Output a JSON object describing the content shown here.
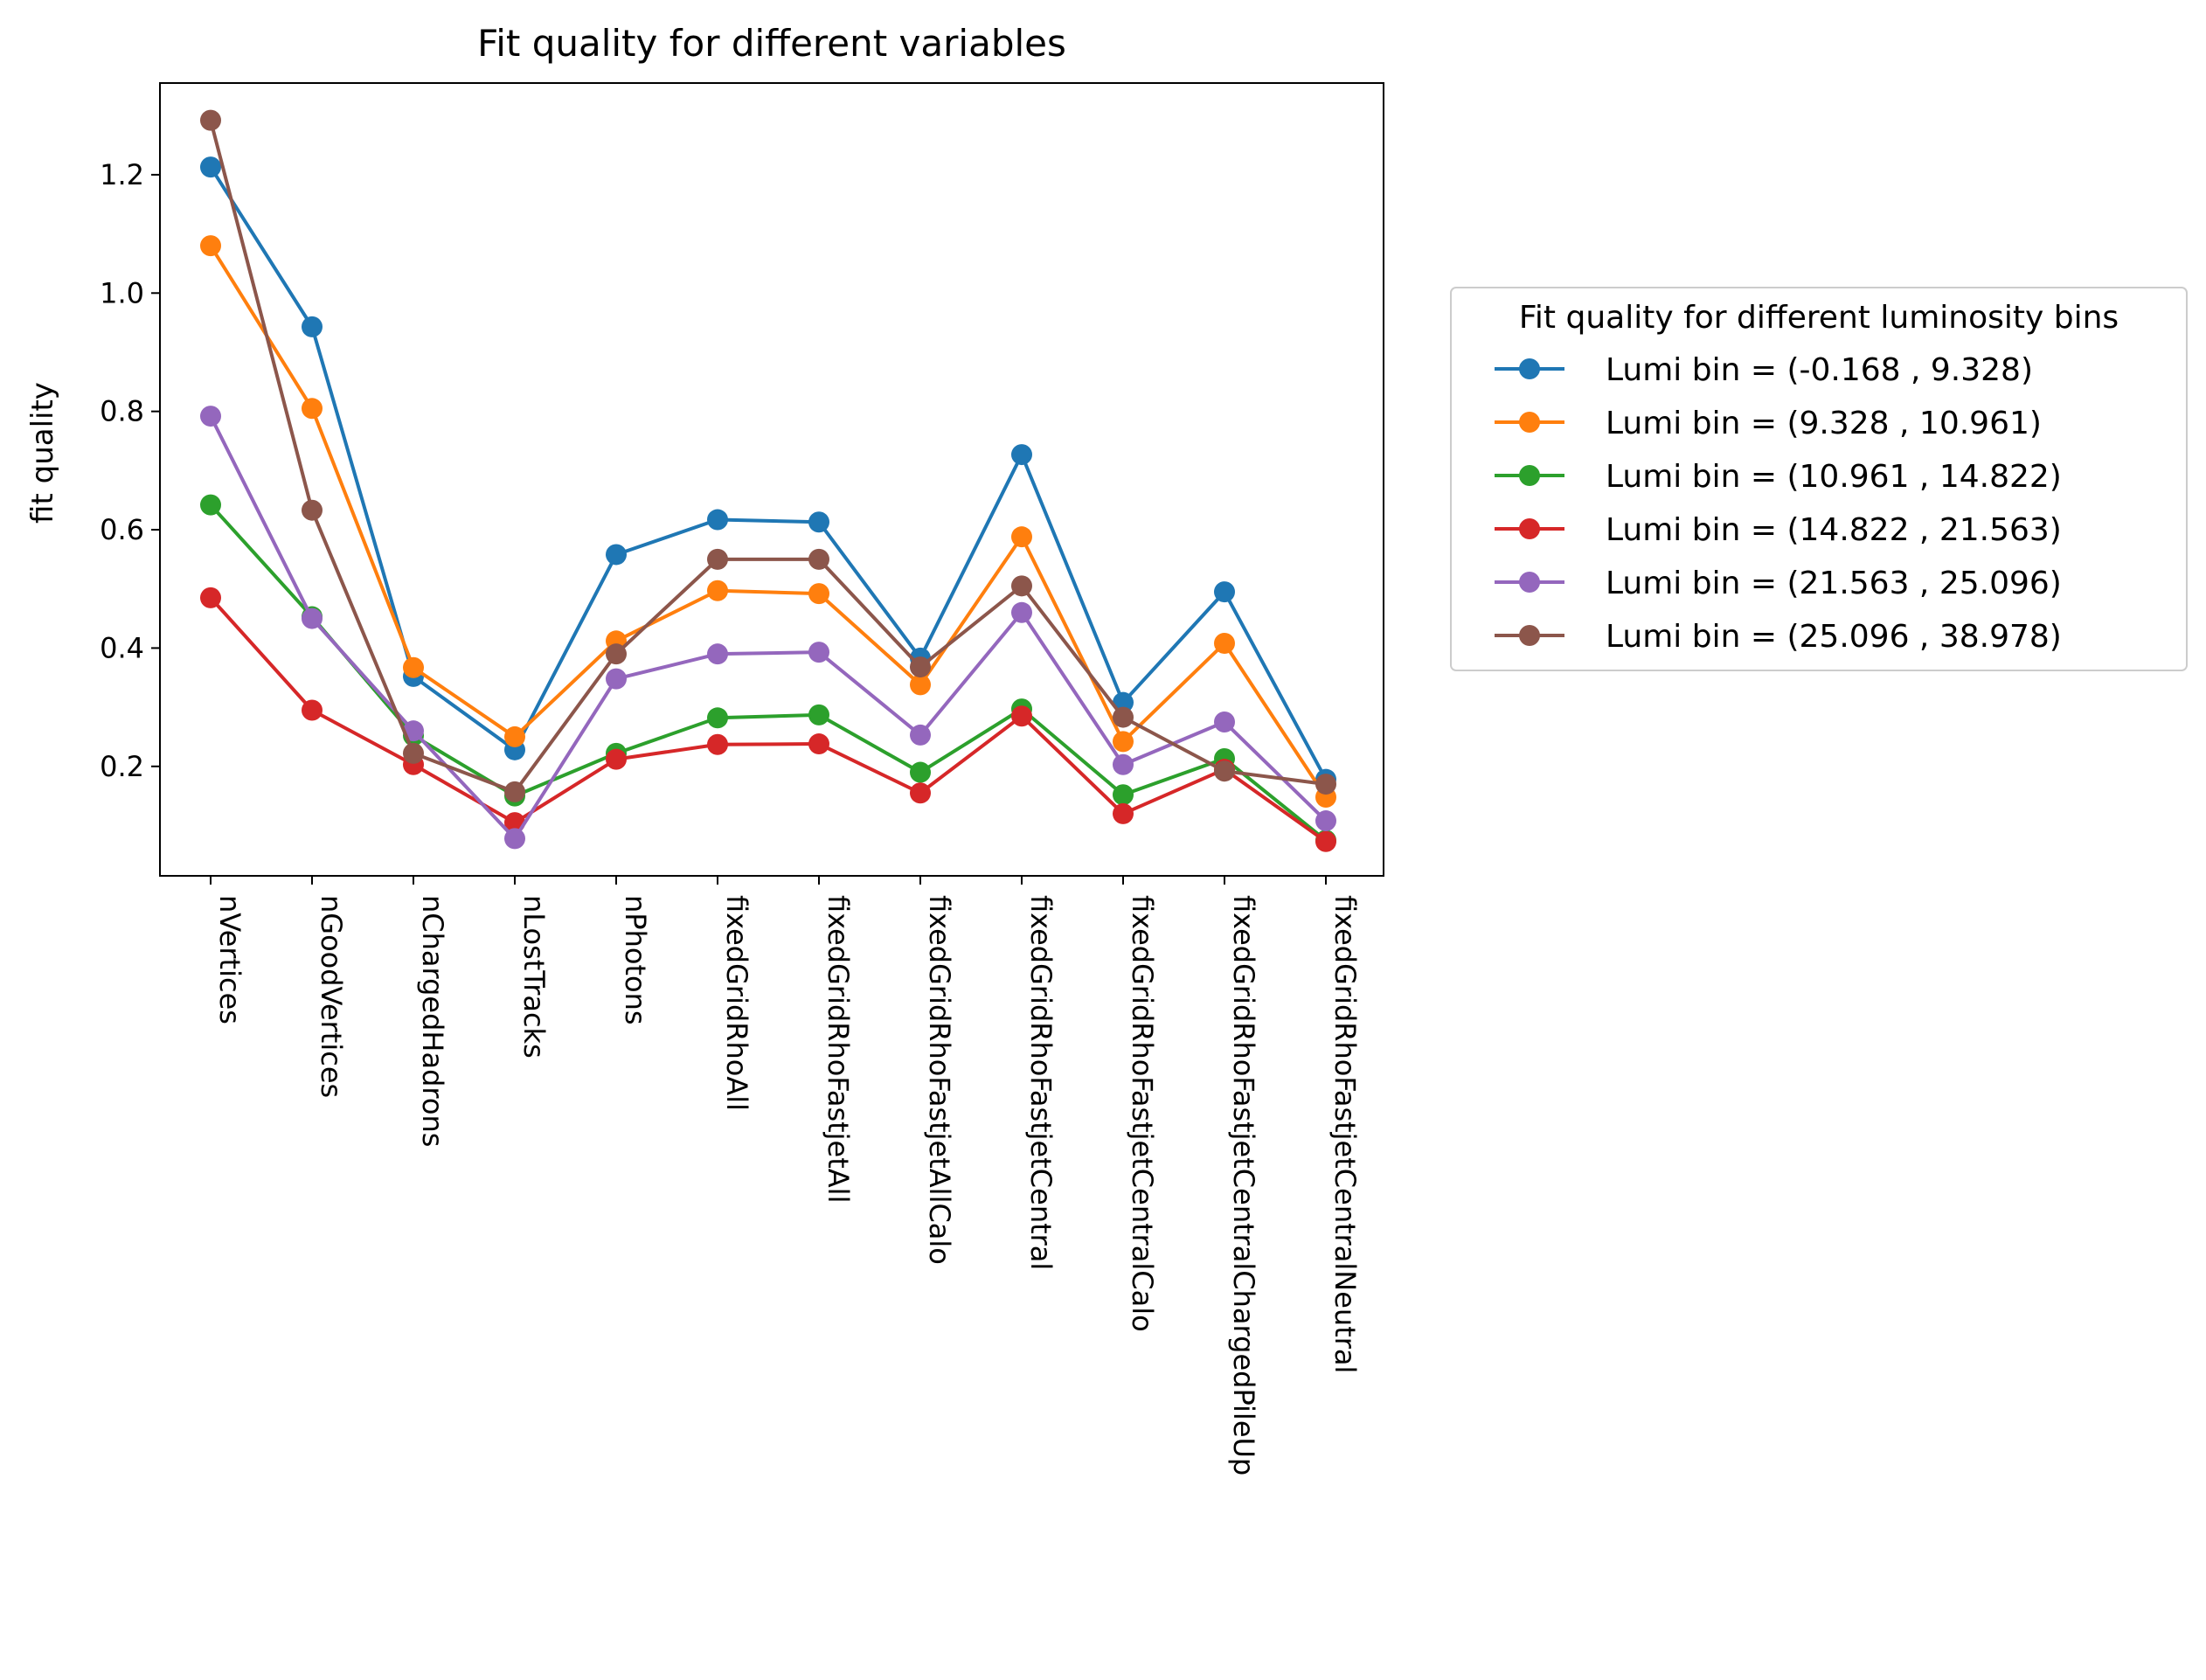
{
  "chart_data": {
    "type": "line",
    "title": "Fit quality for different variables",
    "xlabel": "",
    "ylabel": "fit quality",
    "ylim": [
      0.015,
      1.355
    ],
    "yticks": [
      "0.2",
      "0.4",
      "0.6",
      "0.8",
      "1.0",
      "1.2"
    ],
    "grid": false,
    "legend": {
      "title": "Fit quality for different luminosity bins",
      "placement": "outside-right"
    },
    "categories": [
      "nVertices",
      "nGoodVertices",
      "nChargedHadrons",
      "nLostTracks",
      "nPhotons",
      "fixedGridRhoAll",
      "fixedGridRhoFastjetAll",
      "fixedGridRhoFastjetAllCalo",
      "fixedGridRhoFastjetCentral",
      "fixedGridRhoFastjetCentralCalo",
      "fixedGridRhoFastjetCentralChargedPileUp",
      "fixedGridRhoFastjetCentralNeutral"
    ],
    "series": [
      {
        "name": "Lumi bin = (-0.168 , 9.328)",
        "color": "#1f77b4",
        "values": [
          1.213,
          0.943,
          0.352,
          0.228,
          0.558,
          0.617,
          0.613,
          0.383,
          0.727,
          0.308,
          0.495,
          0.178
        ]
      },
      {
        "name": "Lumi bin = (9.328 , 10.961)",
        "color": "#ff7f0e",
        "values": [
          1.08,
          0.805,
          0.367,
          0.25,
          0.412,
          0.497,
          0.492,
          0.338,
          0.588,
          0.242,
          0.408,
          0.148
        ]
      },
      {
        "name": "Lumi bin = (10.961 , 14.822)",
        "color": "#2ca02c",
        "values": [
          0.642,
          0.453,
          0.252,
          0.15,
          0.222,
          0.282,
          0.287,
          0.19,
          0.297,
          0.152,
          0.213,
          0.075
        ]
      },
      {
        "name": "Lumi bin = (14.822 , 21.563)",
        "color": "#d62728",
        "values": [
          0.485,
          0.295,
          0.203,
          0.105,
          0.212,
          0.237,
          0.238,
          0.155,
          0.285,
          0.12,
          0.195,
          0.073
        ]
      },
      {
        "name": "Lumi bin = (21.563 , 25.096)",
        "color": "#9467bd",
        "values": [
          0.792,
          0.45,
          0.26,
          0.078,
          0.348,
          0.39,
          0.393,
          0.253,
          0.46,
          0.203,
          0.275,
          0.108
        ]
      },
      {
        "name": "Lumi bin = (25.096 , 38.978)",
        "color": "#8c564b",
        "values": [
          1.292,
          0.633,
          0.222,
          0.157,
          0.39,
          0.55,
          0.55,
          0.368,
          0.505,
          0.283,
          0.192,
          0.17
        ]
      }
    ]
  }
}
